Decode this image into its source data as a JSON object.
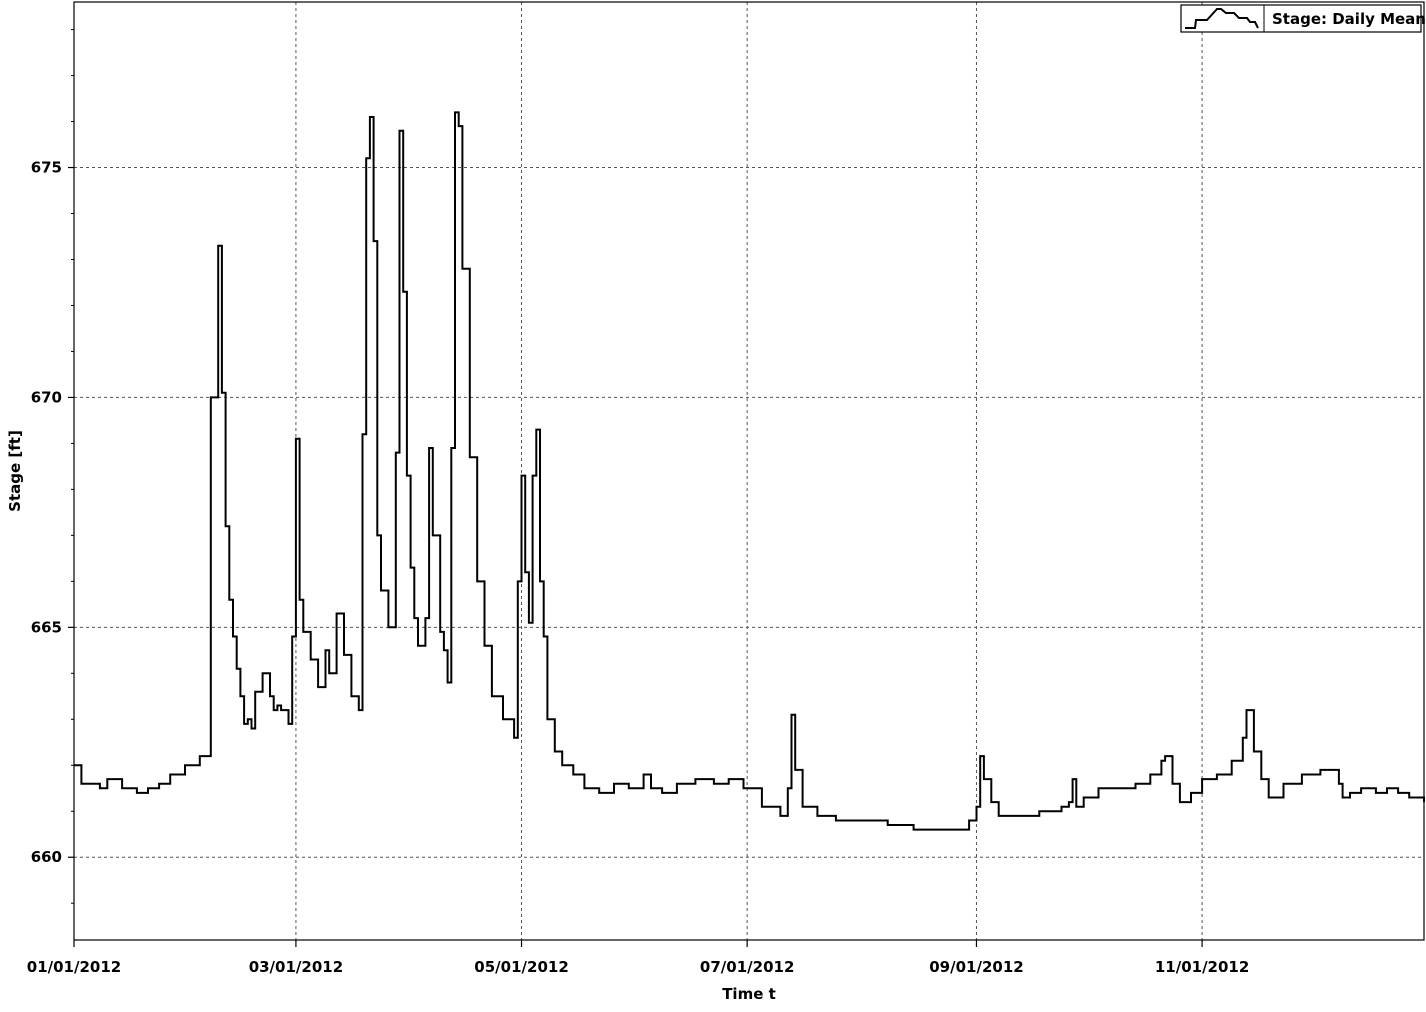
{
  "chart_data": {
    "type": "line",
    "title": "",
    "xlabel": "Time t",
    "ylabel": "Stage [ft]",
    "x_tick_labels": [
      "01/01/2012",
      "03/01/2012",
      "05/01/2012",
      "07/01/2012",
      "09/01/2012",
      "11/01/2012"
    ],
    "y_tick_labels": [
      "660",
      "665",
      "670",
      "675"
    ],
    "xlim": [
      "01/01/2012",
      "12/31/2012"
    ],
    "ylim": [
      658.2,
      678.6
    ],
    "grid": true,
    "legend_position": "top-right",
    "series": [
      {
        "name": "Stage: Daily Mean",
        "color": "#000000",
        "step": true,
        "x": [
          "01/01/2012",
          "01/03/2012",
          "01/05/2012",
          "01/08/2012",
          "01/10/2012",
          "01/14/2012",
          "01/18/2012",
          "01/21/2012",
          "01/24/2012",
          "01/27/2012",
          "01/31/2012",
          "02/04/2012",
          "02/07/2012",
          "02/09/2012",
          "02/10/2012",
          "02/11/2012",
          "02/12/2012",
          "02/13/2012",
          "02/14/2012",
          "02/15/2012",
          "02/16/2012",
          "02/17/2012",
          "02/18/2012",
          "02/19/2012",
          "02/21/2012",
          "02/23/2012",
          "02/24/2012",
          "02/25/2012",
          "02/26/2012",
          "02/28/2012",
          "02/29/2012",
          "03/01/2012",
          "03/02/2012",
          "03/03/2012",
          "03/05/2012",
          "03/07/2012",
          "03/09/2012",
          "03/10/2012",
          "03/12/2012",
          "03/14/2012",
          "03/16/2012",
          "03/18/2012",
          "03/19/2012",
          "03/20/2012",
          "03/21/2012",
          "03/22/2012",
          "03/23/2012",
          "03/24/2012",
          "03/26/2012",
          "03/28/2012",
          "03/29/2012",
          "03/30/2012",
          "03/31/2012",
          "04/01/2012",
          "04/02/2012",
          "04/03/2012",
          "04/05/2012",
          "04/06/2012",
          "04/07/2012",
          "04/09/2012",
          "04/10/2012",
          "04/11/2012",
          "04/12/2012",
          "04/13/2012",
          "04/14/2012",
          "04/15/2012",
          "04/17/2012",
          "04/19/2012",
          "04/21/2012",
          "04/23/2012",
          "04/26/2012",
          "04/29/2012",
          "04/30/2012",
          "05/01/2012",
          "05/02/2012",
          "05/03/2012",
          "05/04/2012",
          "05/05/2012",
          "05/06/2012",
          "05/07/2012",
          "05/08/2012",
          "05/10/2012",
          "05/12/2012",
          "05/15/2012",
          "05/18/2012",
          "05/22/2012",
          "05/26/2012",
          "05/30/2012",
          "06/03/2012",
          "06/05/2012",
          "06/08/2012",
          "06/12/2012",
          "06/17/2012",
          "06/22/2012",
          "06/26/2012",
          "06/30/2012",
          "07/05/2012",
          "07/10/2012",
          "07/12/2012",
          "07/13/2012",
          "07/14/2012",
          "07/16/2012",
          "07/20/2012",
          "07/25/2012",
          "08/01/2012",
          "08/08/2012",
          "08/15/2012",
          "08/22/2012",
          "08/27/2012",
          "08/30/2012",
          "09/01/2012",
          "09/02/2012",
          "09/03/2012",
          "09/05/2012",
          "09/07/2012",
          "09/12/2012",
          "09/18/2012",
          "09/24/2012",
          "09/26/2012",
          "09/27/2012",
          "09/28/2012",
          "09/30/2012",
          "10/04/2012",
          "10/10/2012",
          "10/14/2012",
          "10/18/2012",
          "10/21/2012",
          "10/22/2012",
          "10/24/2012",
          "10/26/2012",
          "10/29/2012",
          "11/01/2012",
          "11/05/2012",
          "11/09/2012",
          "11/12/2012",
          "11/13/2012",
          "11/15/2012",
          "11/17/2012",
          "11/19/2012",
          "11/23/2012",
          "11/28/2012",
          "12/03/2012",
          "12/08/2012",
          "12/09/2012",
          "12/11/2012",
          "12/14/2012",
          "12/18/2012",
          "12/21/2012",
          "12/24/2012",
          "12/27/2012",
          "12/31/2012"
        ],
        "y": [
          662.0,
          661.6,
          661.6,
          661.5,
          661.7,
          661.5,
          661.4,
          661.5,
          661.6,
          661.8,
          662.0,
          662.2,
          670.0,
          673.3,
          670.1,
          667.2,
          665.6,
          664.8,
          664.1,
          663.5,
          662.9,
          663.0,
          662.8,
          663.6,
          664.0,
          663.5,
          663.2,
          663.3,
          663.2,
          662.9,
          664.8,
          669.1,
          665.6,
          664.9,
          664.3,
          663.7,
          664.5,
          664.0,
          665.3,
          664.4,
          663.5,
          663.2,
          669.2,
          675.2,
          676.1,
          673.4,
          667.0,
          665.8,
          665.0,
          668.8,
          675.8,
          672.3,
          668.3,
          666.3,
          665.2,
          664.6,
          665.2,
          668.9,
          667.0,
          664.9,
          664.5,
          663.8,
          668.9,
          676.2,
          675.9,
          672.8,
          668.7,
          666.0,
          664.6,
          663.5,
          663.0,
          662.6,
          666.0,
          668.3,
          666.2,
          665.1,
          668.3,
          669.3,
          666.0,
          664.8,
          663.0,
          662.3,
          662.0,
          661.8,
          661.5,
          661.4,
          661.6,
          661.5,
          661.8,
          661.5,
          661.4,
          661.6,
          661.7,
          661.6,
          661.7,
          661.5,
          661.1,
          660.9,
          661.5,
          663.1,
          661.9,
          661.1,
          660.9,
          660.8,
          660.8,
          660.7,
          660.6,
          660.6,
          660.6,
          660.8,
          661.1,
          662.2,
          661.7,
          661.2,
          660.9,
          660.9,
          661.0,
          661.1,
          661.2,
          661.7,
          661.1,
          661.3,
          661.5,
          661.5,
          661.6,
          661.8,
          662.1,
          662.2,
          661.6,
          661.2,
          661.4,
          661.7,
          661.8,
          662.1,
          662.6,
          663.2,
          662.3,
          661.7,
          661.3,
          661.6,
          661.8,
          661.9,
          661.6,
          661.3,
          661.4,
          661.5,
          661.4,
          661.5,
          661.4,
          661.3,
          661.2
        ]
      }
    ]
  }
}
